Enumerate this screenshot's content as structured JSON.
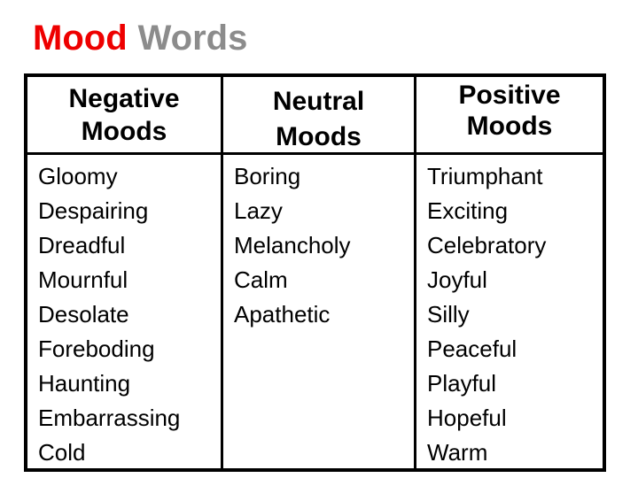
{
  "title": {
    "word_red": "Mood",
    "word_gray": "Words"
  },
  "colors": {
    "title_red": "#ee0000",
    "title_gray": "#8c8c8c",
    "table_border": "#000000",
    "text": "#000000",
    "background": "#ffffff"
  },
  "table": {
    "columns": [
      {
        "id": "negative",
        "header": "Negative Moods",
        "header_lines": [
          "Negative",
          "Moods"
        ],
        "words": [
          "Gloomy",
          "Despairing",
          "Dreadful",
          "Mournful",
          "Desolate",
          "Foreboding",
          "Haunting",
          "Embarrassing",
          "Cold"
        ]
      },
      {
        "id": "neutral",
        "header": "Neutral Moods",
        "header_lines": [
          "Neutral",
          "Moods"
        ],
        "words": [
          "Boring",
          "Lazy",
          "Melancholy",
          "Calm",
          "Apathetic"
        ]
      },
      {
        "id": "positive",
        "header": "Positive Moods",
        "header_lines": [
          "Positive",
          "Moods"
        ],
        "words": [
          "Triumphant",
          "Exciting",
          "Celebratory",
          "Joyful",
          "Silly",
          "Peaceful",
          "Playful",
          "Hopeful",
          "Warm"
        ]
      }
    ]
  }
}
